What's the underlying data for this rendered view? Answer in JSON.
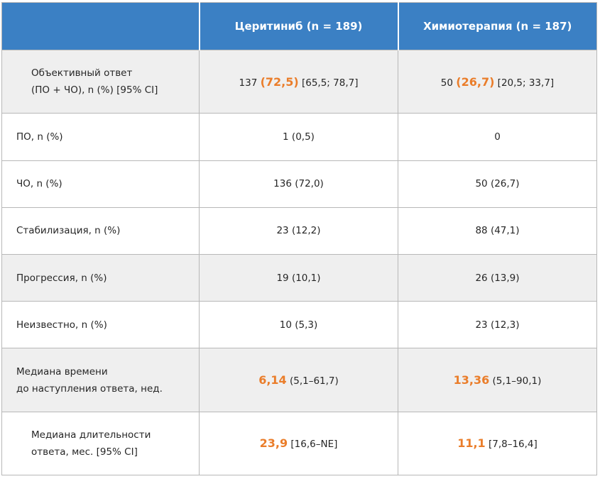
{
  "header": {
    "col1": "",
    "col2": "Церитиниб (n = 189)",
    "col3": "Химиотерапия (n = 187)"
  },
  "rows": {
    "objective": {
      "label_line1": "Объективный ответ",
      "label_line2": "(ПО + ЧО), n (%) [95% CI]",
      "c2_pre": "137 ",
      "c2_hl": "(72,5)",
      "c2_post": " [65,5; 78,7]",
      "c3_pre": "50 ",
      "c3_hl": "(26,7)",
      "c3_post": " [20,5; 33,7]"
    },
    "po": {
      "label": "ПО, n (%)",
      "c2": "1 (0,5)",
      "c3": "0"
    },
    "cho": {
      "label": "ЧО, n (%)",
      "c2": "136 (72,0)",
      "c3": "50 (26,7)"
    },
    "stab": {
      "label": "Стабилизация, n (%)",
      "c2": "23 (12,2)",
      "c3": "88 (47,1)"
    },
    "prog": {
      "label": "Прогрессия, n (%)",
      "c2": "19 (10,1)",
      "c3": "26 (13,9)"
    },
    "unknown": {
      "label": "Неизвестно, n (%)",
      "c2": "10 (5,3)",
      "c3": "23 (12,3)"
    },
    "median_time": {
      "label_line1": "Медиана времени",
      "label_line2": "до наступления ответа, нед.",
      "c2_hl": "6,14",
      "c2_post": " (5,1–61,7)",
      "c3_hl": "13,36",
      "c3_post": " (5,1–90,1)"
    },
    "median_duration": {
      "label_line1": "Медиана длительности",
      "label_line2": "ответа, мес. [95% CI]",
      "c2_hl": "23,9",
      "c2_post": " [16,6–NE]",
      "c3_hl": "11,1",
      "c3_post": " [7,8–16,4]"
    }
  },
  "colors": {
    "header_bg": "#3b80c4",
    "highlight": "#ea7d2a",
    "row_shade": "#efefef"
  }
}
